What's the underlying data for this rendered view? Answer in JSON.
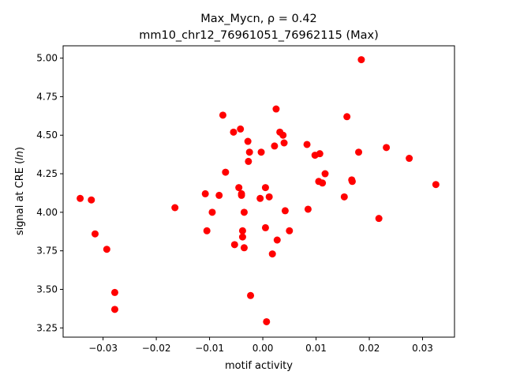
{
  "chart_data": {
    "type": "scatter",
    "title_line1": "Max_Mycn, ρ = 0.42",
    "title_line2": "mm10_chr12_76961051_76962115 (Max)",
    "xlabel": "motif activity",
    "ylabel": "signal at CRE (ln)",
    "xlim": [
      -0.0375,
      0.036
    ],
    "ylim": [
      3.19,
      5.08
    ],
    "xticks": [
      -0.03,
      -0.02,
      -0.01,
      0.0,
      0.01,
      0.02,
      0.03
    ],
    "xtick_labels": [
      "−0.03",
      "−0.02",
      "−0.01",
      "0.00",
      "0.01",
      "0.02",
      "0.03"
    ],
    "yticks": [
      3.25,
      3.5,
      3.75,
      4.0,
      4.25,
      4.5,
      4.75,
      5.0
    ],
    "ytick_labels": [
      "3.25",
      "3.50",
      "3.75",
      "4.00",
      "4.25",
      "4.50",
      "4.75",
      "5.00"
    ],
    "grid": false,
    "marker_color": "#ff0000",
    "points": [
      {
        "x": -0.0343,
        "y": 4.09
      },
      {
        "x": -0.0322,
        "y": 4.08
      },
      {
        "x": -0.0315,
        "y": 3.86
      },
      {
        "x": -0.0293,
        "y": 3.76
      },
      {
        "x": -0.0278,
        "y": 3.48
      },
      {
        "x": -0.0278,
        "y": 3.37
      },
      {
        "x": -0.0165,
        "y": 4.03
      },
      {
        "x": -0.0108,
        "y": 4.12
      },
      {
        "x": -0.0105,
        "y": 3.88
      },
      {
        "x": -0.0095,
        "y": 4.0
      },
      {
        "x": -0.0082,
        "y": 4.11
      },
      {
        "x": -0.0075,
        "y": 4.63
      },
      {
        "x": -0.007,
        "y": 4.26
      },
      {
        "x": -0.0055,
        "y": 4.52
      },
      {
        "x": -0.0053,
        "y": 3.79
      },
      {
        "x": -0.0045,
        "y": 4.16
      },
      {
        "x": -0.0042,
        "y": 4.54
      },
      {
        "x": -0.004,
        "y": 4.12
      },
      {
        "x": -0.004,
        "y": 4.11
      },
      {
        "x": -0.0038,
        "y": 3.88
      },
      {
        "x": -0.0038,
        "y": 3.84
      },
      {
        "x": -0.0035,
        "y": 4.0
      },
      {
        "x": -0.0035,
        "y": 3.77
      },
      {
        "x": -0.0028,
        "y": 4.46
      },
      {
        "x": -0.0027,
        "y": 4.33
      },
      {
        "x": -0.0025,
        "y": 4.39
      },
      {
        "x": -0.0023,
        "y": 3.46
      },
      {
        "x": -0.0005,
        "y": 4.09
      },
      {
        "x": -0.0003,
        "y": 4.39
      },
      {
        "x": 0.0005,
        "y": 4.16
      },
      {
        "x": 0.0005,
        "y": 3.9
      },
      {
        "x": 0.0007,
        "y": 3.29
      },
      {
        "x": 0.0012,
        "y": 4.1
      },
      {
        "x": 0.0018,
        "y": 3.73
      },
      {
        "x": 0.0022,
        "y": 4.43
      },
      {
        "x": 0.0025,
        "y": 4.67
      },
      {
        "x": 0.0027,
        "y": 3.82
      },
      {
        "x": 0.0032,
        "y": 4.52
      },
      {
        "x": 0.0038,
        "y": 4.5
      },
      {
        "x": 0.004,
        "y": 4.45
      },
      {
        "x": 0.0042,
        "y": 4.01
      },
      {
        "x": 0.005,
        "y": 3.88
      },
      {
        "x": 0.0083,
        "y": 4.44
      },
      {
        "x": 0.0085,
        "y": 4.02
      },
      {
        "x": 0.0098,
        "y": 4.37
      },
      {
        "x": 0.0105,
        "y": 4.2
      },
      {
        "x": 0.0107,
        "y": 4.38
      },
      {
        "x": 0.0112,
        "y": 4.19
      },
      {
        "x": 0.0117,
        "y": 4.25
      },
      {
        "x": 0.0153,
        "y": 4.1
      },
      {
        "x": 0.0158,
        "y": 4.62
      },
      {
        "x": 0.0167,
        "y": 4.21
      },
      {
        "x": 0.0168,
        "y": 4.2
      },
      {
        "x": 0.018,
        "y": 4.39
      },
      {
        "x": 0.0185,
        "y": 4.99
      },
      {
        "x": 0.0218,
        "y": 3.96
      },
      {
        "x": 0.0232,
        "y": 4.42
      },
      {
        "x": 0.0275,
        "y": 4.35
      },
      {
        "x": 0.0325,
        "y": 4.18
      }
    ]
  }
}
